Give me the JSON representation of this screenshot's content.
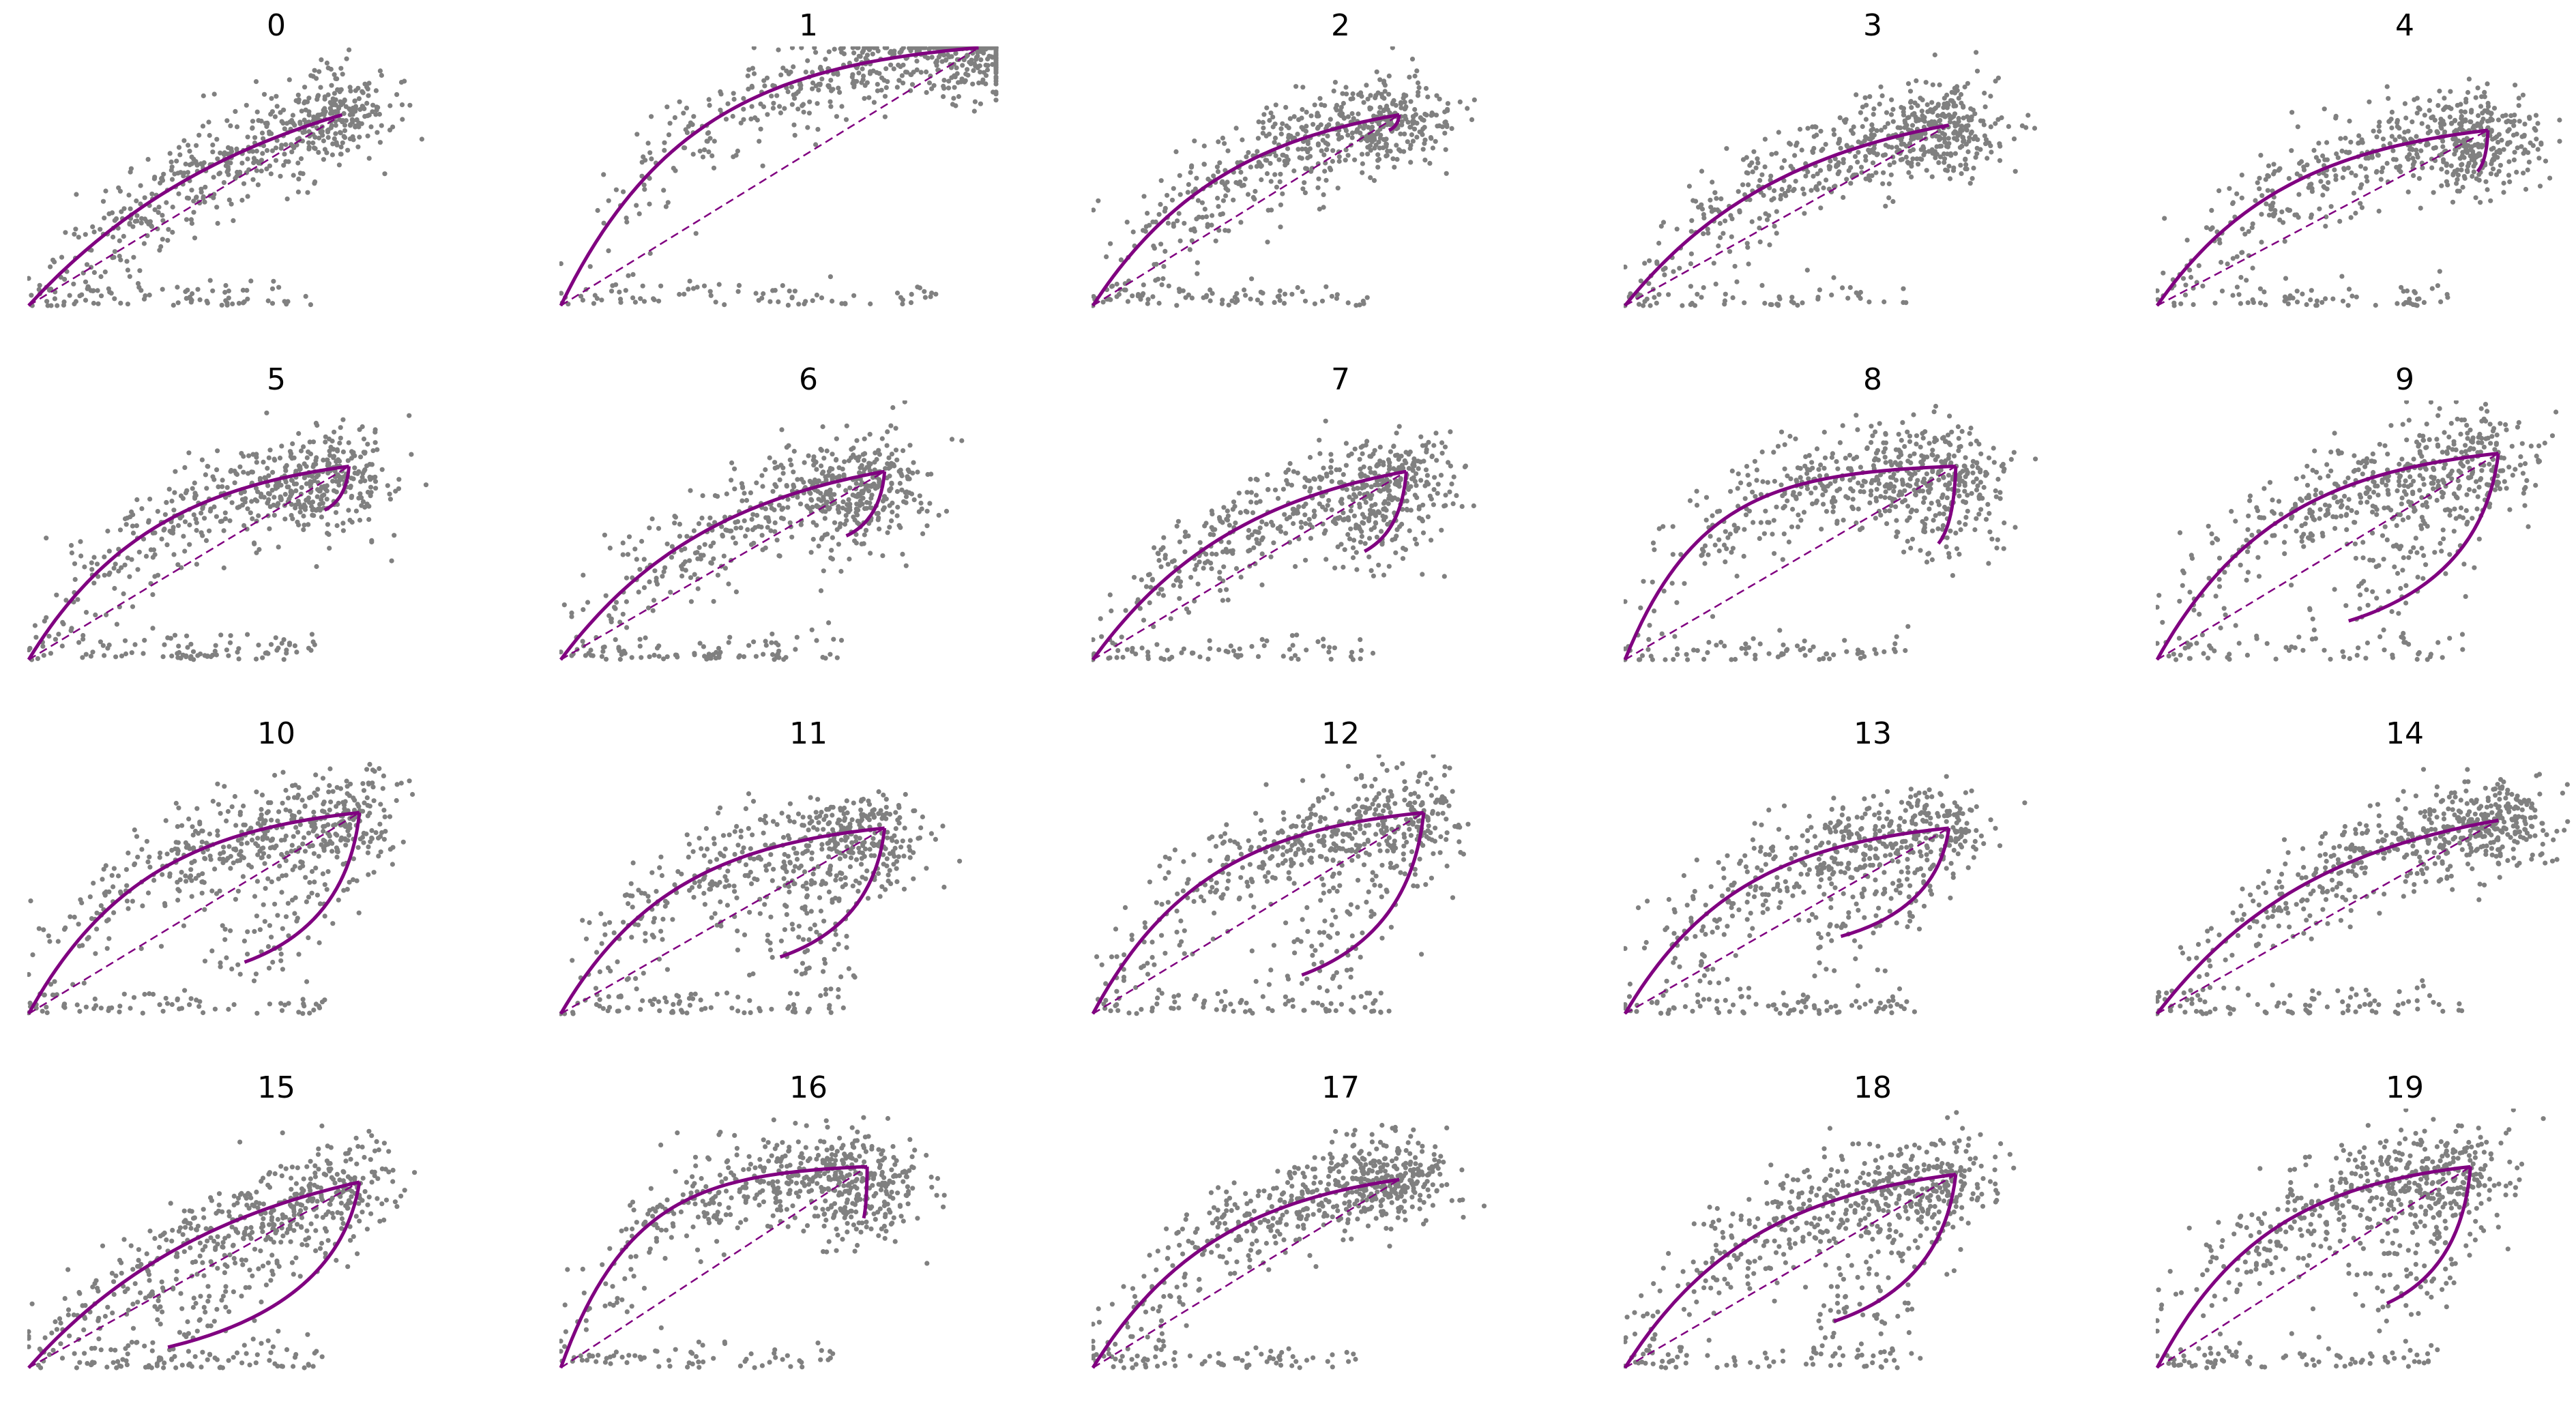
{
  "chart_data": {
    "type": "scatter",
    "layout": "4x5 grid of small-multiple phase portraits, no visible axes",
    "axes_visible": false,
    "grid": false,
    "colors": {
      "points": "#808080",
      "fit": "#800080"
    },
    "fit_style": "solid curve (induction and repression branches) with dashed straight line from origin to steady state",
    "point_x_range": [
      0,
      1.25
    ],
    "point_y_range": [
      0,
      1.0
    ],
    "panels": [
      {
        "title": "0",
        "steady_state": [
          0.9,
          0.74
        ],
        "repression_end": [
          0.9,
          0.74
        ],
        "curvature": 1.3
      },
      {
        "title": "1",
        "steady_state": [
          1.2,
          1.0
        ],
        "repression_end": [
          1.2,
          1.0
        ],
        "curvature": 3.2
      },
      {
        "title": "2",
        "steady_state": [
          0.88,
          0.74
        ],
        "repression_end": [
          0.85,
          0.68
        ],
        "curvature": 2.2
      },
      {
        "title": "3",
        "steady_state": [
          0.93,
          0.7
        ],
        "repression_end": [
          0.93,
          0.7
        ],
        "curvature": 1.9
      },
      {
        "title": "4",
        "steady_state": [
          0.95,
          0.68
        ],
        "repression_end": [
          0.92,
          0.52
        ],
        "curvature": 2.5
      },
      {
        "title": "5",
        "steady_state": [
          0.92,
          0.75
        ],
        "repression_end": [
          0.85,
          0.58
        ],
        "curvature": 2.5
      },
      {
        "title": "6",
        "steady_state": [
          0.93,
          0.73
        ],
        "repression_end": [
          0.82,
          0.48
        ],
        "curvature": 2.0
      },
      {
        "title": "7",
        "steady_state": [
          0.9,
          0.73
        ],
        "repression_end": [
          0.78,
          0.42
        ],
        "curvature": 2.0
      },
      {
        "title": "8",
        "steady_state": [
          0.95,
          0.75
        ],
        "repression_end": [
          0.9,
          0.45
        ],
        "curvature": 4.2
      },
      {
        "title": "9",
        "steady_state": [
          0.98,
          0.8
        ],
        "repression_end": [
          0.55,
          0.15
        ],
        "curvature": 2.8
      },
      {
        "title": "10",
        "steady_state": [
          0.95,
          0.78
        ],
        "repression_end": [
          0.62,
          0.2
        ],
        "curvature": 2.8
      },
      {
        "title": "11",
        "steady_state": [
          0.93,
          0.72
        ],
        "repression_end": [
          0.63,
          0.22
        ],
        "curvature": 2.8
      },
      {
        "title": "12",
        "steady_state": [
          0.95,
          0.78
        ],
        "repression_end": [
          0.6,
          0.15
        ],
        "curvature": 2.9
      },
      {
        "title": "13",
        "steady_state": [
          0.93,
          0.72
        ],
        "repression_end": [
          0.62,
          0.3
        ],
        "curvature": 2.8
      },
      {
        "title": "14",
        "steady_state": [
          0.98,
          0.75
        ],
        "repression_end": [
          0.98,
          0.75
        ],
        "curvature": 2.0
      },
      {
        "title": "15",
        "steady_state": [
          0.95,
          0.72
        ],
        "repression_end": [
          0.4,
          0.08
        ],
        "curvature": 1.6
      },
      {
        "title": "16",
        "steady_state": [
          0.88,
          0.78
        ],
        "repression_end": [
          0.87,
          0.58
        ],
        "curvature": 4.2
      },
      {
        "title": "17",
        "steady_state": [
          0.88,
          0.73
        ],
        "repression_end": [
          0.88,
          0.73
        ],
        "curvature": 2.4
      },
      {
        "title": "18",
        "steady_state": [
          0.95,
          0.75
        ],
        "repression_end": [
          0.6,
          0.18
        ],
        "curvature": 2.5
      },
      {
        "title": "19",
        "steady_state": [
          0.9,
          0.78
        ],
        "repression_end": [
          0.66,
          0.25
        ],
        "curvature": 2.8
      }
    ]
  }
}
